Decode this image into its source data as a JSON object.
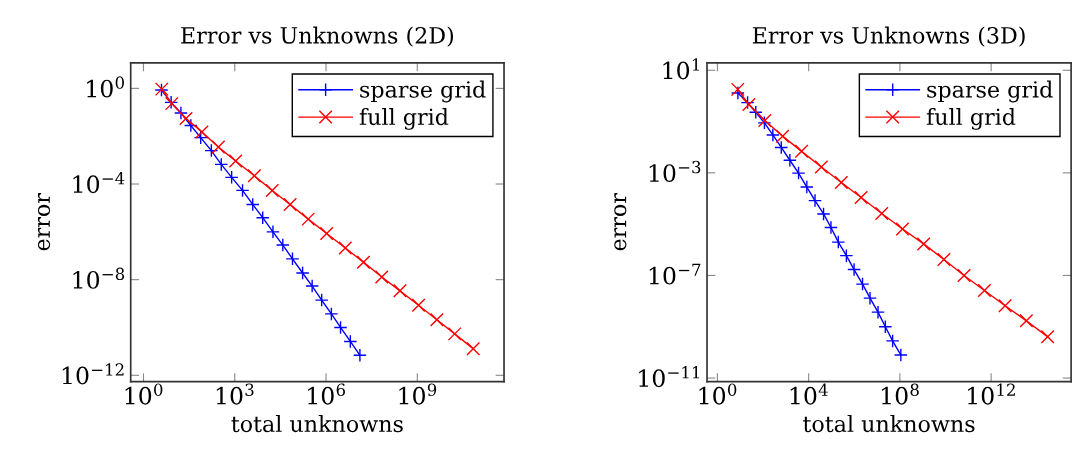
{
  "chart_data": [
    {
      "type": "line",
      "title": "Error vs Unknowns (2D)",
      "xlabel": "total unknowns",
      "ylabel": "error",
      "log": "xy",
      "grid": false,
      "legend": "top right",
      "xlim": [
        0.38,
        710000000000.0
      ],
      "ylim": [
        5.4e-13,
        11.7
      ],
      "xticks": [
        {
          "value": 1,
          "label": "10$^{0}$"
        },
        {
          "value": 1000,
          "label": "10$^{3}$"
        },
        {
          "value": 1000000,
          "label": "10$^{6}$"
        },
        {
          "value": 1000000000,
          "label": "10$^{9}$"
        }
      ],
      "yticks": [
        {
          "value": 1,
          "label": "10$^{0}$"
        },
        {
          "value": 0.0001,
          "label": "10$^{−4}$"
        },
        {
          "value": 1e-08,
          "label": "10$^{−8}$"
        },
        {
          "value": 1e-12,
          "label": "10$^{−12}$"
        }
      ],
      "series": [
        {
          "name": "sparse grid",
          "color": "#0000ff",
          "marker": "cross",
          "x": [
            3.9,
            8.1,
            17,
            36,
            76,
            170,
            360,
            790,
            1800,
            3900,
            8300,
            18000,
            38000,
            79000,
            170000,
            350000,
            720000,
            1500000,
            3000000,
            6300000,
            13000000
          ],
          "values": [
            0.85,
            0.26,
            0.093,
            0.028,
            0.0087,
            0.0025,
            0.00066,
            0.00019,
            5.4e-05,
            1.4e-05,
            3.9e-06,
            1e-06,
            2.8e-07,
            7.4e-08,
            1.9e-08,
            5.4e-09,
            1.4e-09,
            3.7e-10,
            1e-10,
            2.6e-11,
            6.9e-12
          ]
        },
        {
          "name": "full grid",
          "color": "#ff0000",
          "marker": "x",
          "x": [
            4.0,
            8.5,
            25,
            83,
            290,
            1070,
            4400,
            17000,
            66000,
            260000,
            1050000,
            4300000,
            17000000,
            68000000,
            270000000,
            1100000000,
            4400000000,
            17000000000,
            69000000000
          ],
          "values": [
            0.93,
            0.23,
            0.055,
            0.015,
            0.0035,
            0.00091,
            0.00022,
            5.4e-05,
            1.4e-05,
            3.4e-06,
            8.5e-07,
            2.1e-07,
            5.4e-08,
            1.3e-08,
            3.4e-09,
            8.5e-10,
            2.1e-10,
            5.4e-11,
            1.3e-11
          ]
        }
      ]
    },
    {
      "type": "line",
      "title": "Error vs Unknowns (3D)",
      "xlabel": "total unknowns",
      "ylabel": "error",
      "log": "xy",
      "grid": false,
      "legend": "top right",
      "xlim": [
        0.35,
        3200000000000000.0
      ],
      "ylim": [
        7.2e-12,
        19.5
      ],
      "xticks": [
        {
          "value": 1,
          "label": "10$^{0}$"
        },
        {
          "value": 10000,
          "label": "10$^{4}$"
        },
        {
          "value": 100000000,
          "label": "10$^{8}$"
        },
        {
          "value": 1000000000000,
          "label": "10$^{12}$"
        }
      ],
      "yticks": [
        {
          "value": 10,
          "label": "10$^{1}$"
        },
        {
          "value": 0.001,
          "label": "10$^{−3}$"
        },
        {
          "value": 1e-07,
          "label": "10$^{−7}$"
        },
        {
          "value": 1e-11,
          "label": "10$^{−11}$"
        }
      ],
      "series": [
        {
          "name": "sparse grid",
          "color": "#0000ff",
          "marker": "cross",
          "x": [
            7.9,
            21,
            48,
            115,
            270,
            630,
            1500,
            3600,
            8300,
            19000,
            45000,
            95000,
            200000,
            450000,
            980000,
            2300000,
            4900000,
            11000000,
            23000000,
            48000000,
            110000000
          ],
          "values": [
            1.3,
            0.55,
            0.23,
            0.089,
            0.03,
            0.0098,
            0.0031,
            0.00098,
            0.00028,
            8.3e-05,
            2.5e-05,
            7.4e-06,
            2e-06,
            5.9e-07,
            1.7e-07,
            4.6e-08,
            1.3e-08,
            3.7e-09,
            1e-09,
            2.8e-10,
            7.9e-11
          ]
        },
        {
          "name": "full grid",
          "color": "#ff0000",
          "marker": "x",
          "x": [
            7.8,
            24,
            120,
            720,
            4900,
            36000,
            270000,
            2000000,
            16000000,
            130000000,
            1100000000,
            8500000000,
            65000000000,
            510000000000,
            4100000000000,
            35000000000000,
            300000000000000
          ],
          "values": [
            1.8,
            0.46,
            0.11,
            0.027,
            0.0069,
            0.0017,
            0.00042,
            0.00011,
            2.6e-05,
            6.5e-06,
            1.7e-06,
            4.2e-07,
            1e-07,
            2.6e-08,
            6.6e-09,
            1.7e-09,
            4.1e-10
          ]
        }
      ]
    }
  ]
}
